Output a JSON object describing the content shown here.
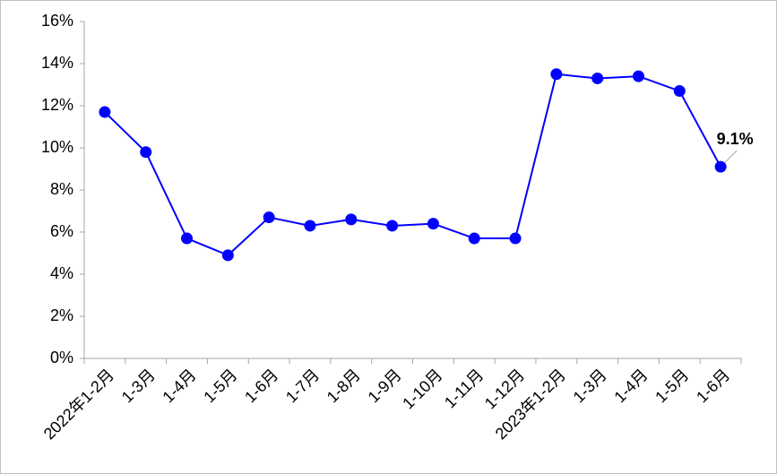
{
  "chart_data": {
    "type": "line",
    "categories": [
      "2022年1-2月",
      "1-3月",
      "1-4月",
      "1-5月",
      "1-6月",
      "1-7月",
      "1-8月",
      "1-9月",
      "1-10月",
      "1-11月",
      "1-12月",
      "2023年1-2月",
      "1-3月",
      "1-4月",
      "1-5月",
      "1-6月"
    ],
    "values": [
      11.7,
      9.8,
      5.7,
      4.9,
      6.7,
      6.3,
      6.6,
      6.3,
      6.4,
      5.7,
      5.7,
      13.5,
      13.3,
      13.4,
      12.7,
      9.1
    ],
    "value_labels": [
      null,
      null,
      null,
      null,
      null,
      null,
      null,
      null,
      null,
      null,
      null,
      null,
      null,
      null,
      null,
      "9.1%"
    ],
    "color": "#0000ff",
    "ylim": [
      0,
      16
    ],
    "yticks": [
      {
        "value": 0,
        "label": "0%"
      },
      {
        "value": 2,
        "label": "2%"
      },
      {
        "value": 4,
        "label": "4%"
      },
      {
        "value": 6,
        "label": "6%"
      },
      {
        "value": 8,
        "label": "8%"
      },
      {
        "value": 10,
        "label": "10%"
      },
      {
        "value": 12,
        "label": "12%"
      },
      {
        "value": 14,
        "label": "14%"
      },
      {
        "value": 16,
        "label": "16%"
      }
    ],
    "grid": false
  }
}
